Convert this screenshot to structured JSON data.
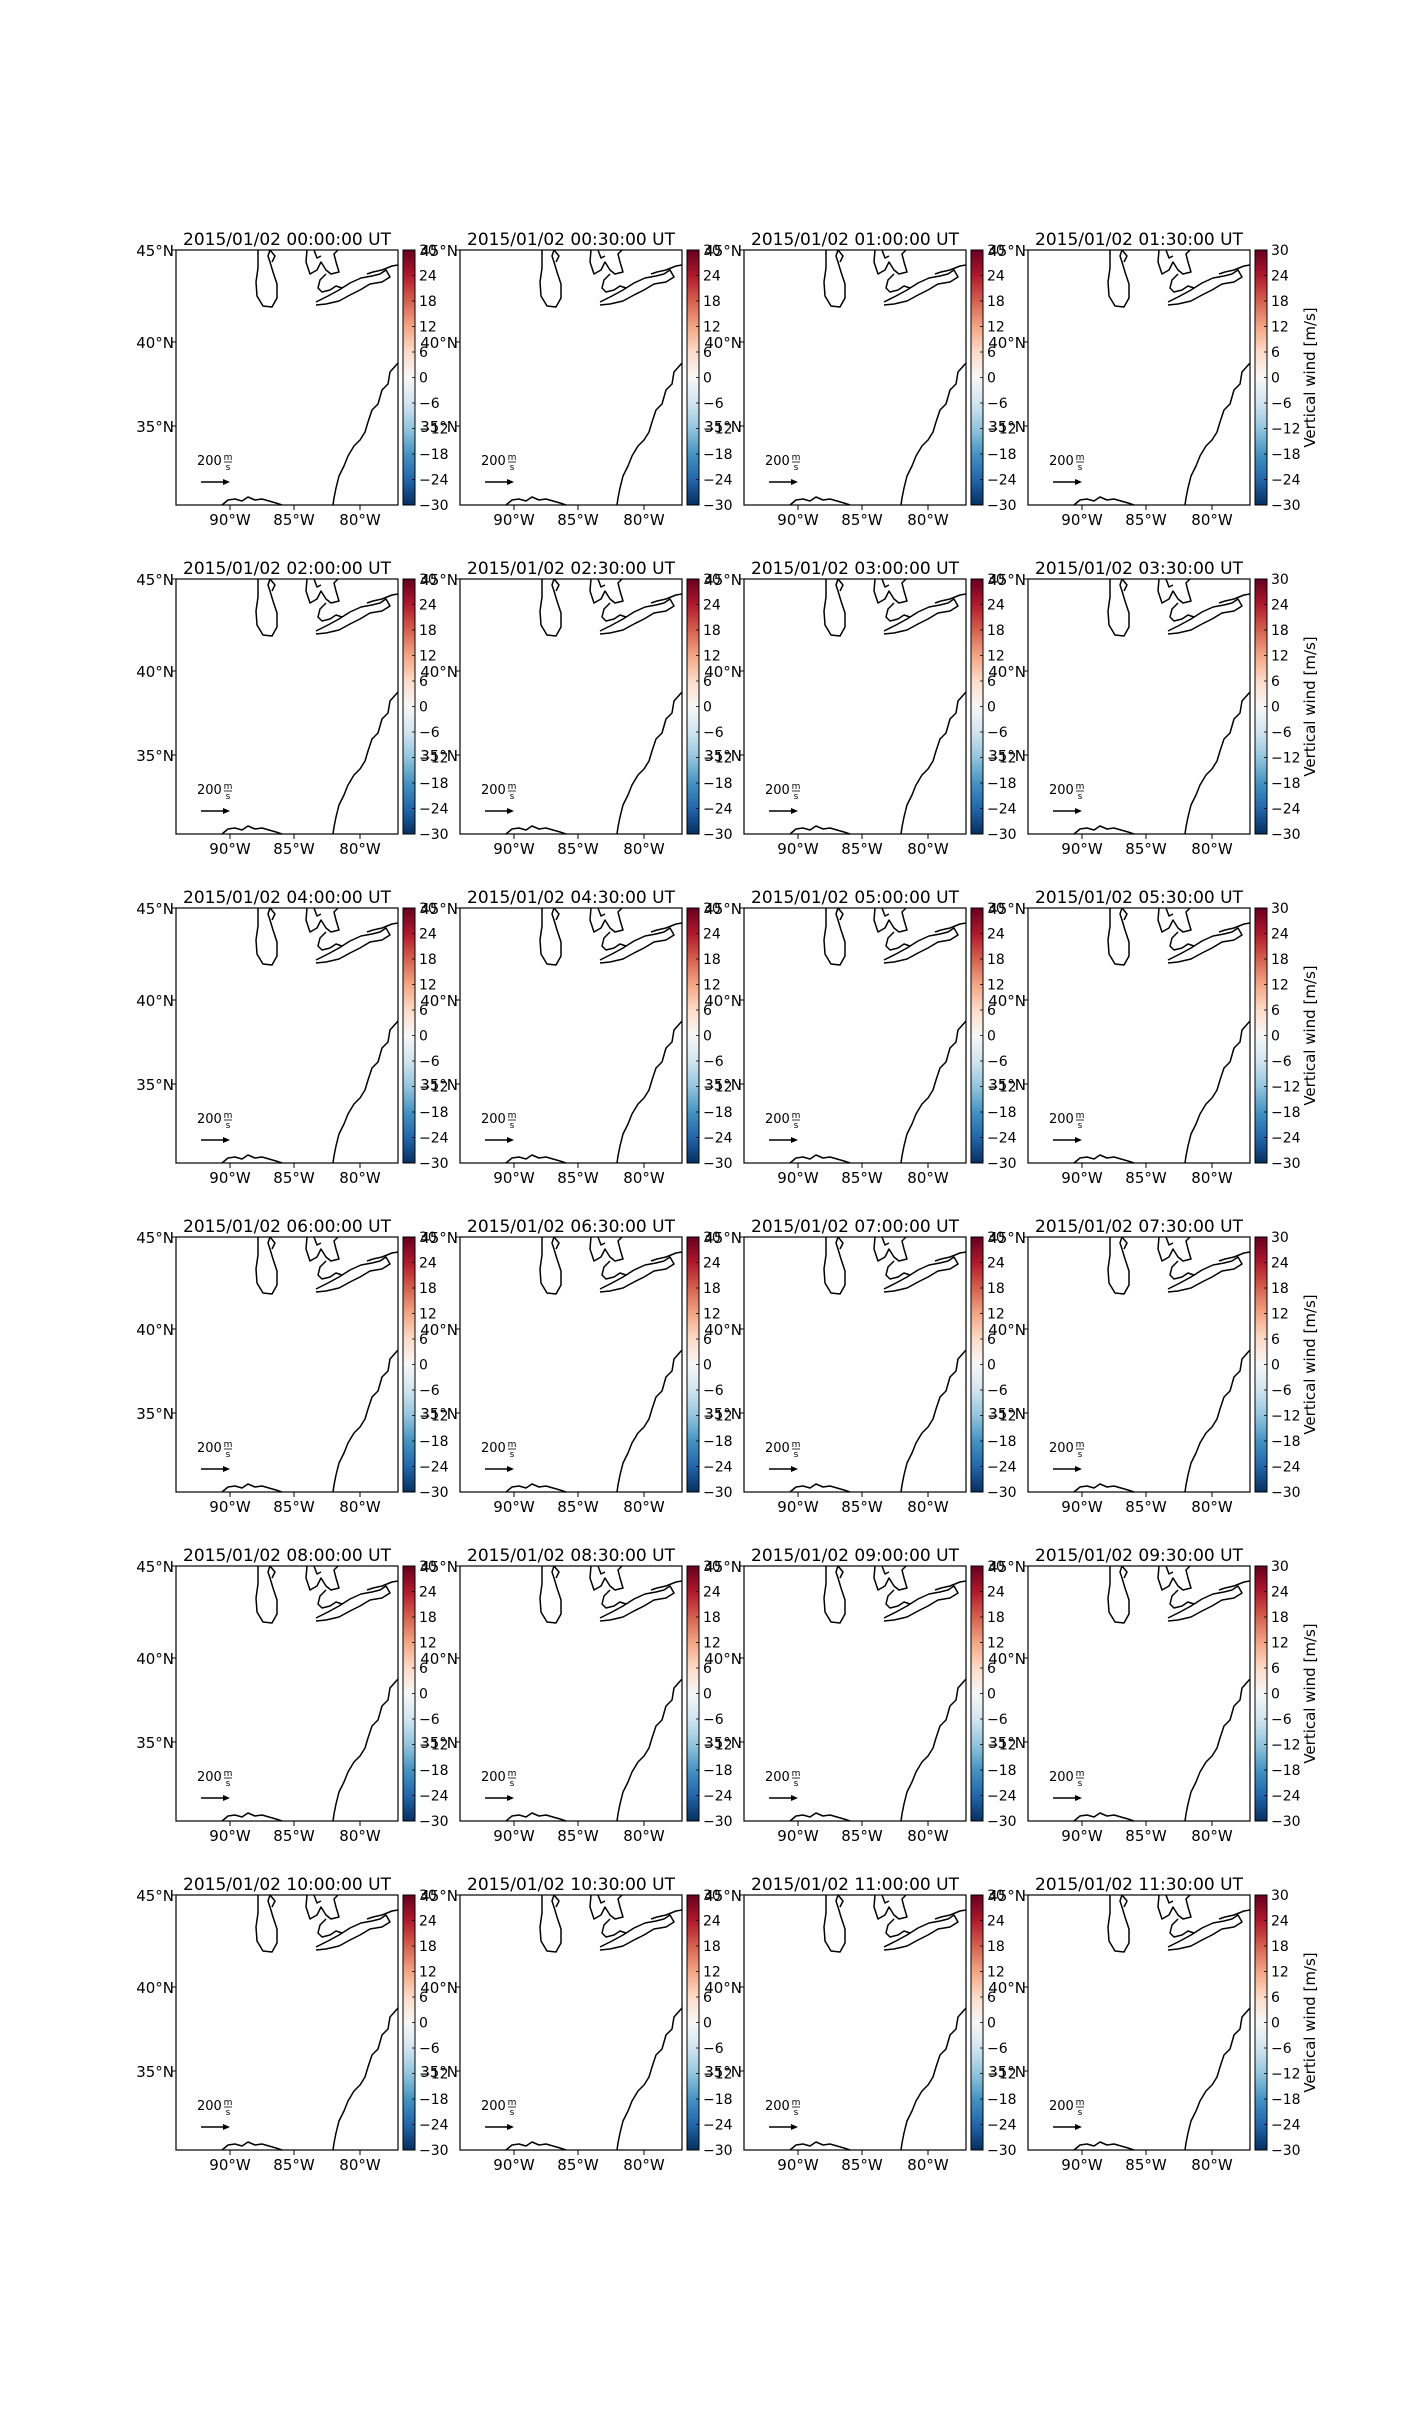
{
  "figure": {
    "colorbar_label": "Vertical wind [m/s]",
    "colormap": "RdBu_r",
    "colormap_stops": [
      "#053061",
      "#2166ac",
      "#4393c3",
      "#92c5de",
      "#d1e5f0",
      "#f7f7f7",
      "#fddbc7",
      "#f4a582",
      "#d6604d",
      "#b2182b",
      "#67001f"
    ],
    "colorbar_ticks": [
      "30",
      "24",
      "18",
      "12",
      "6",
      "0",
      "−6",
      "−12",
      "−18",
      "−24",
      "−30"
    ],
    "xtick_labels": [
      "90°W",
      "85°W",
      "80°W"
    ],
    "ytick_labels": [
      "45°N",
      "40°N",
      "35°N"
    ],
    "quiver_key_value": "200",
    "quiver_key_unit_num": "m",
    "quiver_key_unit_den": "s",
    "panel_titles": [
      "2015/01/02 00:00:00 UT",
      "2015/01/02 00:30:00 UT",
      "2015/01/02 01:00:00 UT",
      "2015/01/02 01:30:00 UT",
      "2015/01/02 02:00:00 UT",
      "2015/01/02 02:30:00 UT",
      "2015/01/02 03:00:00 UT",
      "2015/01/02 03:30:00 UT",
      "2015/01/02 04:00:00 UT",
      "2015/01/02 04:30:00 UT",
      "2015/01/02 05:00:00 UT",
      "2015/01/02 05:30:00 UT",
      "2015/01/02 06:00:00 UT",
      "2015/01/02 06:30:00 UT",
      "2015/01/02 07:00:00 UT",
      "2015/01/02 07:30:00 UT",
      "2015/01/02 08:00:00 UT",
      "2015/01/02 08:30:00 UT",
      "2015/01/02 09:00:00 UT",
      "2015/01/02 09:30:00 UT",
      "2015/01/02 10:00:00 UT",
      "2015/01/02 10:30:00 UT",
      "2015/01/02 11:00:00 UT",
      "2015/01/02 11:30:00 UT"
    ]
  },
  "chart_data": {
    "type": "map",
    "rows": 6,
    "columns": 4,
    "xlabel": "",
    "ylabel": "",
    "x_ticks_deg_w": [
      90,
      85,
      80
    ],
    "y_ticks_deg_n": [
      45,
      40,
      35
    ],
    "xlim_deg_w": [
      94,
      77.5
    ],
    "ylim_deg_n": [
      30.5,
      45
    ],
    "colorbar_range": [
      -30,
      30
    ],
    "colorbar_ticks": [
      30,
      24,
      18,
      12,
      6,
      0,
      -6,
      -12,
      -18,
      -24,
      -30
    ],
    "quiver_key_ms": 200,
    "field_values": "none visible (all panels blank white)"
  }
}
